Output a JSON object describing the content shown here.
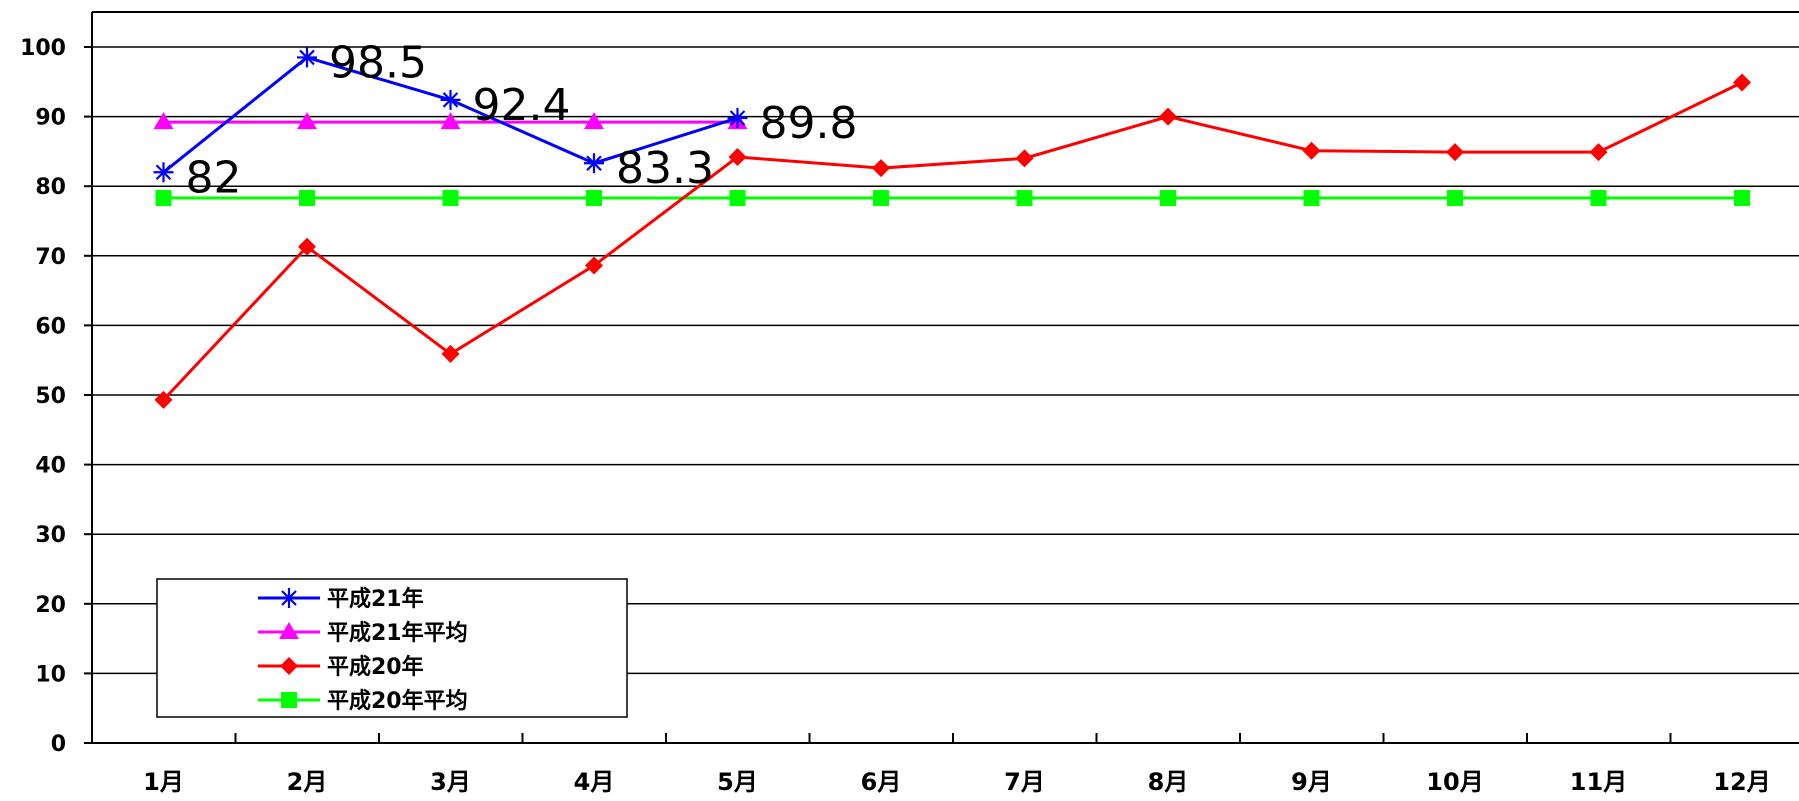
{
  "chart_data": {
    "type": "line",
    "categories": [
      "1月",
      "2月",
      "3月",
      "4月",
      "5月",
      "6月",
      "7月",
      "8月",
      "9月",
      "10月",
      "11月",
      "12月"
    ],
    "y_ticks": [
      "0",
      "10",
      "20",
      "30",
      "40",
      "50",
      "60",
      "70",
      "80",
      "90",
      "100"
    ],
    "ylim": [
      0,
      100
    ],
    "grid": true,
    "legend_position": "bottom-left",
    "series": [
      {
        "name": "平成21年",
        "color": "#0000ff",
        "marker": "asterisk",
        "values": [
          82,
          98.5,
          92.4,
          83.3,
          89.8,
          null,
          null,
          null,
          null,
          null,
          null,
          null
        ],
        "data_labels": [
          "82",
          "98.5",
          "92.4",
          "83.3",
          "89.8"
        ]
      },
      {
        "name": "平成21年平均",
        "color": "#ff00ff",
        "marker": "triangle",
        "values": [
          89.2,
          89.2,
          89.2,
          89.2,
          89.2,
          null,
          null,
          null,
          null,
          null,
          null,
          null
        ]
      },
      {
        "name": "平成20年",
        "color": "#ff0000",
        "marker": "diamond",
        "values": [
          49.3,
          71.3,
          55.9,
          68.6,
          84.2,
          82.6,
          84.0,
          90.0,
          85.1,
          84.9,
          84.9,
          94.9
        ]
      },
      {
        "name": "平成20年平均",
        "color": "#00ff00",
        "marker": "square",
        "values": [
          78.3,
          78.3,
          78.3,
          78.3,
          78.3,
          78.3,
          78.3,
          78.3,
          78.3,
          78.3,
          78.3,
          78.3
        ]
      }
    ]
  }
}
